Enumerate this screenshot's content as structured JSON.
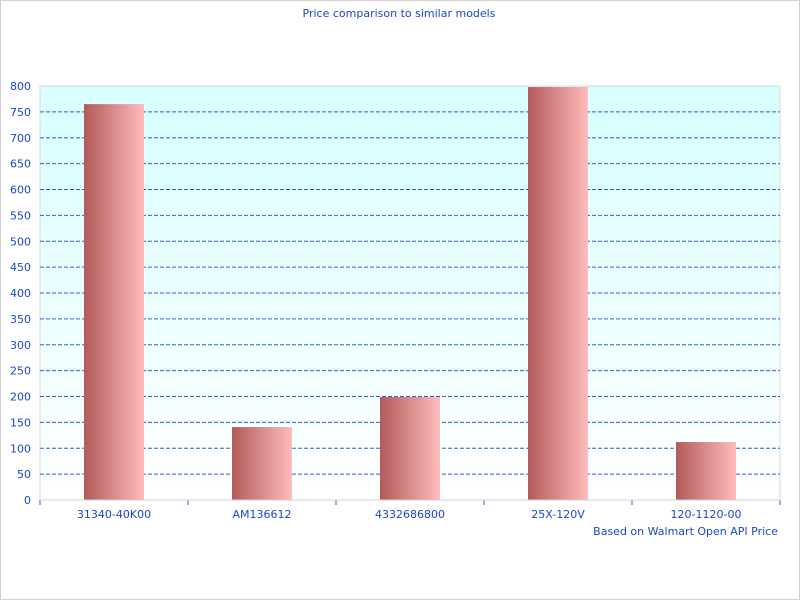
{
  "chart_data": {
    "type": "bar",
    "title": "Price comparison to similar models",
    "categories": [
      "31340-40K00",
      "AM136612",
      "4332686800",
      "25X-120V",
      "120-1120-00"
    ],
    "values": [
      765,
      141,
      199,
      798,
      112
    ],
    "ylim": [
      0,
      800
    ],
    "yticks": [
      0,
      50,
      100,
      150,
      200,
      250,
      300,
      350,
      400,
      450,
      500,
      550,
      600,
      650,
      700,
      750,
      800
    ],
    "grid": true,
    "footnote": "Based on Walmart Open API Price",
    "colors": {
      "bar_dark": "#b35a5a",
      "bar_light": "#ffbcbc",
      "grid": "#2b5fd9",
      "text": "#1a46c8",
      "plot_top": "#d8ffff",
      "plot_bottom": "#ffffff"
    }
  }
}
